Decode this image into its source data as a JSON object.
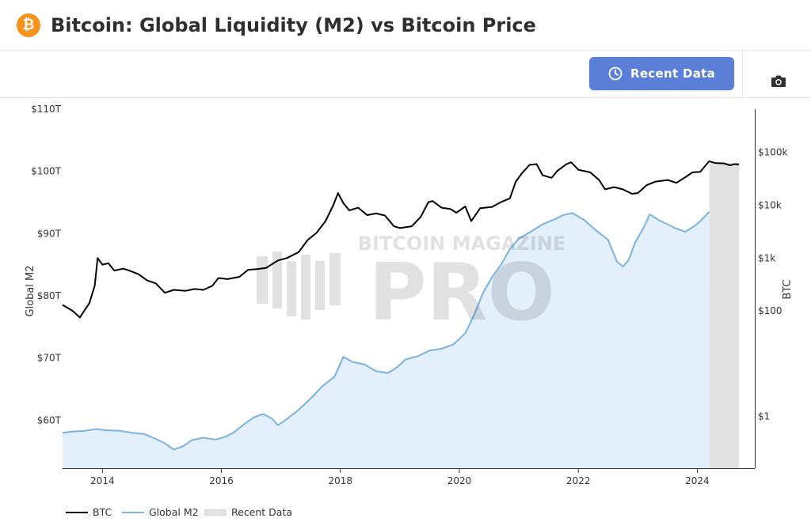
{
  "header": {
    "title": "Bitcoin: Global Liquidity (M2) vs Bitcoin Price",
    "logo_glyph": "₿",
    "logo_color": "#f7931a"
  },
  "toolbar": {
    "recent_button_label": "Recent Data",
    "recent_button_icon": "clock-icon",
    "camera_icon": "camera-icon",
    "accent_color": "#5b7fd6"
  },
  "watermark": {
    "top_text": "BITCOIN MAGAZINE",
    "main_text": "PRO"
  },
  "chart_data": {
    "type": "line",
    "x_axis": {
      "tick_labels": [
        "2014",
        "2016",
        "2018",
        "2020",
        "2022",
        "2024"
      ],
      "range": [
        2013.33,
        2024.7
      ]
    },
    "y_axis_left": {
      "label": "Global M2",
      "tick_labels": [
        "$60T",
        "$70T",
        "$80T",
        "$90T",
        "$100T",
        "$110T"
      ],
      "tick_values": [
        60,
        70,
        80,
        90,
        100,
        110
      ],
      "range": [
        52.3,
        110
      ]
    },
    "y_axis_right": {
      "label": "BTC",
      "scale": "log",
      "tick_labels": [
        "$1",
        "$100",
        "$1k",
        "$10k",
        "$100k"
      ],
      "tick_values": [
        1,
        100,
        1000,
        10000,
        100000
      ],
      "range": [
        0.105,
        660000
      ]
    },
    "recent_data_band": {
      "start": 2024.2,
      "end": 2024.7,
      "color": "#e1e1e1"
    },
    "legend": [
      "BTC",
      "Global M2",
      "Recent Data"
    ],
    "series": [
      {
        "name": "BTC",
        "axis": "right",
        "color": "#000000",
        "points": [
          [
            2013.33,
            130
          ],
          [
            2013.5,
            100
          ],
          [
            2013.62,
            75
          ],
          [
            2013.78,
            140
          ],
          [
            2013.87,
            300
          ],
          [
            2013.92,
            1000
          ],
          [
            2014.0,
            750
          ],
          [
            2014.1,
            800
          ],
          [
            2014.2,
            580
          ],
          [
            2014.35,
            630
          ],
          [
            2014.45,
            580
          ],
          [
            2014.6,
            500
          ],
          [
            2014.75,
            380
          ],
          [
            2014.9,
            330
          ],
          [
            2015.05,
            220
          ],
          [
            2015.2,
            250
          ],
          [
            2015.4,
            240
          ],
          [
            2015.55,
            260
          ],
          [
            2015.7,
            250
          ],
          [
            2015.85,
            300
          ],
          [
            2015.95,
            420
          ],
          [
            2016.1,
            400
          ],
          [
            2016.3,
            440
          ],
          [
            2016.45,
            600
          ],
          [
            2016.6,
            620
          ],
          [
            2016.75,
            650
          ],
          [
            2016.95,
            900
          ],
          [
            2017.1,
            1000
          ],
          [
            2017.3,
            1300
          ],
          [
            2017.45,
            2200
          ],
          [
            2017.6,
            3000
          ],
          [
            2017.75,
            5000
          ],
          [
            2017.88,
            10000
          ],
          [
            2017.96,
            17000
          ],
          [
            2018.05,
            11000
          ],
          [
            2018.15,
            8000
          ],
          [
            2018.3,
            9000
          ],
          [
            2018.45,
            6500
          ],
          [
            2018.6,
            7000
          ],
          [
            2018.75,
            6400
          ],
          [
            2018.9,
            4000
          ],
          [
            2019.0,
            3700
          ],
          [
            2019.2,
            4000
          ],
          [
            2019.35,
            6000
          ],
          [
            2019.48,
            11500
          ],
          [
            2019.55,
            12000
          ],
          [
            2019.7,
            9000
          ],
          [
            2019.85,
            8500
          ],
          [
            2019.95,
            7200
          ],
          [
            2020.1,
            9500
          ],
          [
            2020.2,
            5000
          ],
          [
            2020.35,
            8800
          ],
          [
            2020.55,
            9300
          ],
          [
            2020.7,
            11500
          ],
          [
            2020.85,
            13500
          ],
          [
            2020.95,
            28000
          ],
          [
            2021.05,
            40000
          ],
          [
            2021.18,
            58000
          ],
          [
            2021.3,
            60000
          ],
          [
            2021.4,
            37000
          ],
          [
            2021.55,
            33000
          ],
          [
            2021.65,
            45000
          ],
          [
            2021.8,
            60000
          ],
          [
            2021.88,
            65000
          ],
          [
            2022.0,
            47000
          ],
          [
            2022.2,
            42000
          ],
          [
            2022.35,
            30000
          ],
          [
            2022.45,
            20000
          ],
          [
            2022.6,
            22000
          ],
          [
            2022.75,
            20000
          ],
          [
            2022.9,
            16500
          ],
          [
            2023.0,
            17000
          ],
          [
            2023.15,
            24000
          ],
          [
            2023.3,
            28000
          ],
          [
            2023.5,
            30000
          ],
          [
            2023.65,
            26500
          ],
          [
            2023.8,
            34000
          ],
          [
            2023.92,
            42000
          ],
          [
            2024.05,
            43000
          ],
          [
            2024.2,
            68000
          ],
          [
            2024.3,
            63000
          ],
          [
            2024.45,
            62000
          ],
          [
            2024.55,
            57000
          ],
          [
            2024.63,
            60000
          ],
          [
            2024.7,
            59000
          ]
        ]
      },
      {
        "name": "Global M2",
        "axis": "left",
        "color": "#7ab3e0",
        "fill": "#e3effa",
        "points": [
          [
            2013.33,
            58.0
          ],
          [
            2013.5,
            58.2
          ],
          [
            2013.7,
            58.3
          ],
          [
            2013.9,
            58.6
          ],
          [
            2014.05,
            58.4
          ],
          [
            2014.3,
            58.3
          ],
          [
            2014.5,
            58.0
          ],
          [
            2014.7,
            57.8
          ],
          [
            2014.9,
            57.0
          ],
          [
            2015.05,
            56.3
          ],
          [
            2015.2,
            55.3
          ],
          [
            2015.35,
            55.8
          ],
          [
            2015.5,
            56.8
          ],
          [
            2015.7,
            57.2
          ],
          [
            2015.9,
            56.9
          ],
          [
            2016.05,
            57.3
          ],
          [
            2016.2,
            58.0
          ],
          [
            2016.4,
            59.5
          ],
          [
            2016.55,
            60.5
          ],
          [
            2016.7,
            61.0
          ],
          [
            2016.85,
            60.3
          ],
          [
            2016.95,
            59.2
          ],
          [
            2017.1,
            60.2
          ],
          [
            2017.3,
            61.7
          ],
          [
            2017.5,
            63.5
          ],
          [
            2017.7,
            65.5
          ],
          [
            2017.9,
            67.0
          ],
          [
            2018.05,
            70.2
          ],
          [
            2018.2,
            69.4
          ],
          [
            2018.4,
            69.0
          ],
          [
            2018.6,
            67.9
          ],
          [
            2018.8,
            67.6
          ],
          [
            2018.95,
            68.5
          ],
          [
            2019.1,
            69.8
          ],
          [
            2019.3,
            70.3
          ],
          [
            2019.5,
            71.2
          ],
          [
            2019.7,
            71.5
          ],
          [
            2019.9,
            72.2
          ],
          [
            2020.1,
            74.0
          ],
          [
            2020.25,
            77.0
          ],
          [
            2020.4,
            80.5
          ],
          [
            2020.55,
            83.0
          ],
          [
            2020.7,
            85.0
          ],
          [
            2020.85,
            87.5
          ],
          [
            2021.0,
            89.2
          ],
          [
            2021.2,
            90.3
          ],
          [
            2021.4,
            91.5
          ],
          [
            2021.6,
            92.3
          ],
          [
            2021.75,
            93.0
          ],
          [
            2021.9,
            93.3
          ],
          [
            2022.1,
            92.2
          ],
          [
            2022.3,
            90.5
          ],
          [
            2022.5,
            89.0
          ],
          [
            2022.65,
            85.5
          ],
          [
            2022.75,
            84.7
          ],
          [
            2022.85,
            85.8
          ],
          [
            2022.95,
            88.5
          ],
          [
            2023.1,
            91.0
          ],
          [
            2023.2,
            93.1
          ],
          [
            2023.35,
            92.2
          ],
          [
            2023.5,
            91.5
          ],
          [
            2023.65,
            90.8
          ],
          [
            2023.8,
            90.3
          ],
          [
            2023.95,
            91.2
          ],
          [
            2024.05,
            92.0
          ],
          [
            2024.2,
            93.5
          ]
        ]
      }
    ]
  }
}
